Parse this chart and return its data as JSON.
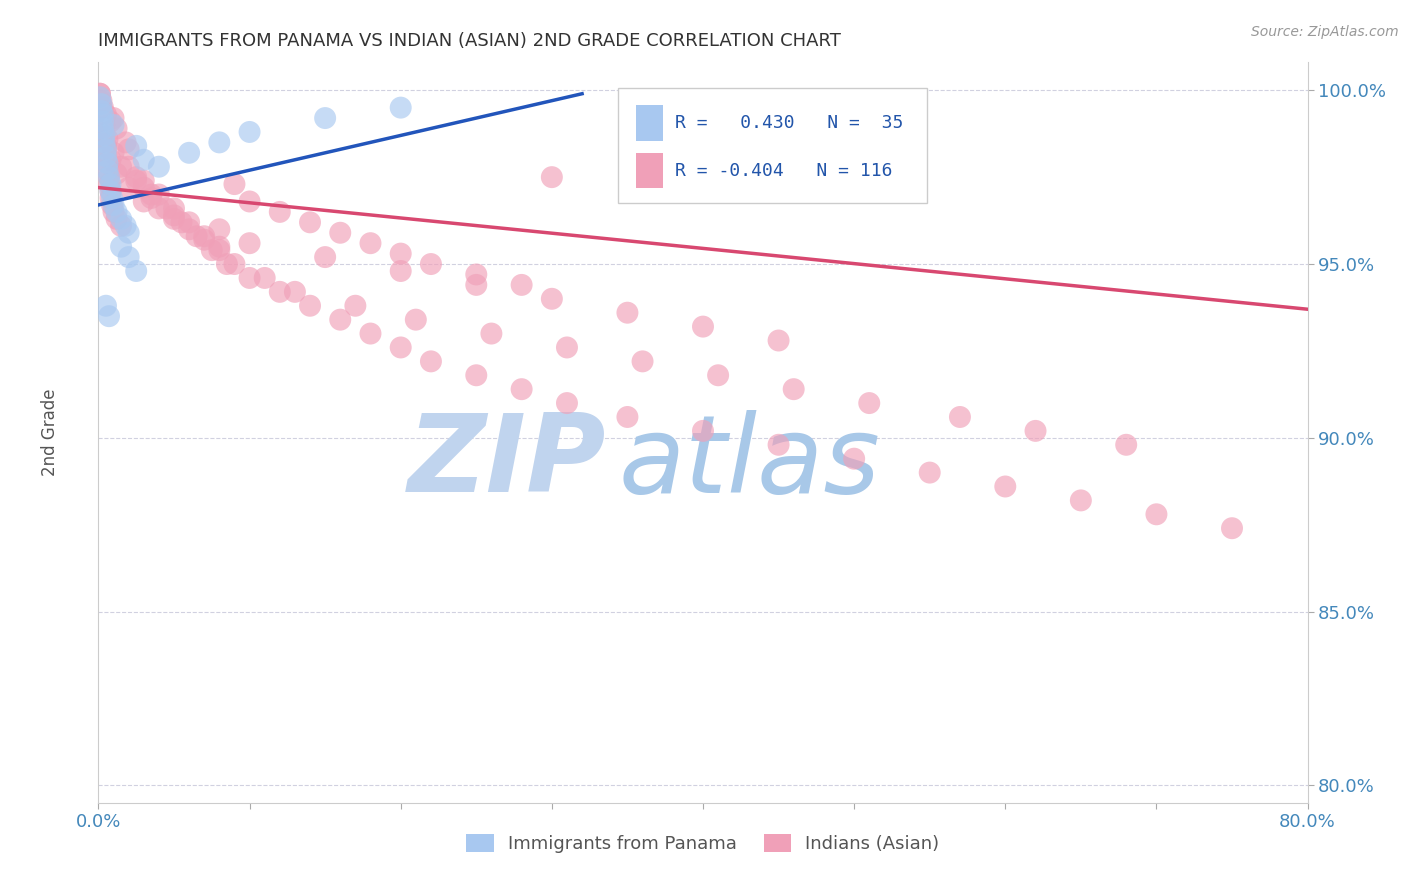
{
  "title": "IMMIGRANTS FROM PANAMA VS INDIAN (ASIAN) 2ND GRADE CORRELATION CHART",
  "source": "Source: ZipAtlas.com",
  "ylabel": "2nd Grade",
  "xlabel_blue": "Immigrants from Panama",
  "xlabel_pink": "Indians (Asian)",
  "xlim": [
    0.0,
    0.8
  ],
  "ylim": [
    0.795,
    1.008
  ],
  "xtick_positions": [
    0.0,
    0.1,
    0.2,
    0.3,
    0.4,
    0.5,
    0.6,
    0.7,
    0.8
  ],
  "xtick_labels": [
    "0.0%",
    "",
    "",
    "",
    "",
    "",
    "",
    "",
    "80.0%"
  ],
  "ytick_positions": [
    0.8,
    0.85,
    0.9,
    0.95,
    1.0
  ],
  "ytick_labels": [
    "80.0%",
    "85.0%",
    "90.0%",
    "95.0%",
    "100.0%"
  ],
  "legend_blue_R": "0.430",
  "legend_blue_N": "35",
  "legend_pink_R": "-0.404",
  "legend_pink_N": "116",
  "blue_fill": "#a8c8f0",
  "pink_fill": "#f0a0b8",
  "trendline_blue": "#2255bb",
  "trendline_pink": "#d84870",
  "watermark_zip_color": "#c0d4ee",
  "watermark_atlas_color": "#a8c8e8",
  "grid_color": "#ccccdd",
  "blue_trend_x": [
    0.0,
    0.32
  ],
  "blue_trend_y": [
    0.967,
    0.999
  ],
  "pink_trend_x": [
    0.0,
    0.8
  ],
  "pink_trend_y": [
    0.972,
    0.937
  ],
  "blue_x": [
    0.001,
    0.002,
    0.002,
    0.003,
    0.003,
    0.003,
    0.004,
    0.004,
    0.005,
    0.005,
    0.006,
    0.006,
    0.007,
    0.008,
    0.008,
    0.009,
    0.01,
    0.01,
    0.012,
    0.015,
    0.018,
    0.02,
    0.025,
    0.03,
    0.04,
    0.06,
    0.08,
    0.1,
    0.15,
    0.2,
    0.015,
    0.02,
    0.025,
    0.005,
    0.007
  ],
  "blue_y": [
    0.998,
    0.996,
    0.994,
    0.993,
    0.991,
    0.989,
    0.987,
    0.985,
    0.983,
    0.981,
    0.979,
    0.977,
    0.975,
    0.973,
    0.971,
    0.969,
    0.99,
    0.967,
    0.965,
    0.963,
    0.961,
    0.959,
    0.984,
    0.98,
    0.978,
    0.982,
    0.985,
    0.988,
    0.992,
    0.995,
    0.955,
    0.952,
    0.948,
    0.938,
    0.935
  ],
  "pink_x": [
    0.001,
    0.001,
    0.002,
    0.002,
    0.003,
    0.003,
    0.004,
    0.004,
    0.005,
    0.005,
    0.006,
    0.006,
    0.007,
    0.007,
    0.008,
    0.008,
    0.009,
    0.01,
    0.01,
    0.012,
    0.015,
    0.018,
    0.02,
    0.025,
    0.03,
    0.035,
    0.04,
    0.05,
    0.06,
    0.07,
    0.08,
    0.09,
    0.1,
    0.12,
    0.14,
    0.16,
    0.18,
    0.2,
    0.22,
    0.25,
    0.28,
    0.3,
    0.003,
    0.005,
    0.008,
    0.012,
    0.02,
    0.03,
    0.05,
    0.08,
    0.1,
    0.15,
    0.2,
    0.25,
    0.3,
    0.35,
    0.4,
    0.45,
    0.002,
    0.004,
    0.006,
    0.01,
    0.015,
    0.025,
    0.035,
    0.045,
    0.055,
    0.065,
    0.075,
    0.085,
    0.11,
    0.13,
    0.17,
    0.21,
    0.26,
    0.31,
    0.36,
    0.41,
    0.46,
    0.51,
    0.57,
    0.62,
    0.68,
    0.02,
    0.03,
    0.04,
    0.05,
    0.06,
    0.07,
    0.08,
    0.09,
    0.1,
    0.12,
    0.14,
    0.16,
    0.18,
    0.2,
    0.22,
    0.25,
    0.28,
    0.31,
    0.35,
    0.4,
    0.45,
    0.5,
    0.55,
    0.6,
    0.65,
    0.7,
    0.75,
    0.001,
    0.002,
    0.003,
    0.005,
    0.008,
    0.012
  ],
  "pink_y": [
    0.999,
    0.997,
    0.995,
    0.993,
    0.991,
    0.989,
    0.987,
    0.985,
    0.983,
    0.981,
    0.979,
    0.977,
    0.975,
    0.973,
    0.971,
    0.969,
    0.967,
    0.992,
    0.965,
    0.963,
    0.961,
    0.985,
    0.983,
    0.975,
    0.972,
    0.969,
    0.966,
    0.963,
    0.96,
    0.957,
    0.955,
    0.973,
    0.968,
    0.965,
    0.962,
    0.959,
    0.956,
    0.953,
    0.95,
    0.947,
    0.944,
    0.975,
    0.988,
    0.984,
    0.98,
    0.976,
    0.972,
    0.968,
    0.964,
    0.96,
    0.956,
    0.952,
    0.948,
    0.944,
    0.94,
    0.936,
    0.932,
    0.928,
    0.994,
    0.99,
    0.986,
    0.982,
    0.978,
    0.974,
    0.97,
    0.966,
    0.962,
    0.958,
    0.954,
    0.95,
    0.946,
    0.942,
    0.938,
    0.934,
    0.93,
    0.926,
    0.922,
    0.918,
    0.914,
    0.91,
    0.906,
    0.902,
    0.898,
    0.978,
    0.974,
    0.97,
    0.966,
    0.962,
    0.958,
    0.954,
    0.95,
    0.946,
    0.942,
    0.938,
    0.934,
    0.93,
    0.926,
    0.922,
    0.918,
    0.914,
    0.91,
    0.906,
    0.902,
    0.898,
    0.894,
    0.89,
    0.886,
    0.882,
    0.878,
    0.874,
    0.999,
    0.997,
    0.995,
    0.993,
    0.991,
    0.989
  ]
}
